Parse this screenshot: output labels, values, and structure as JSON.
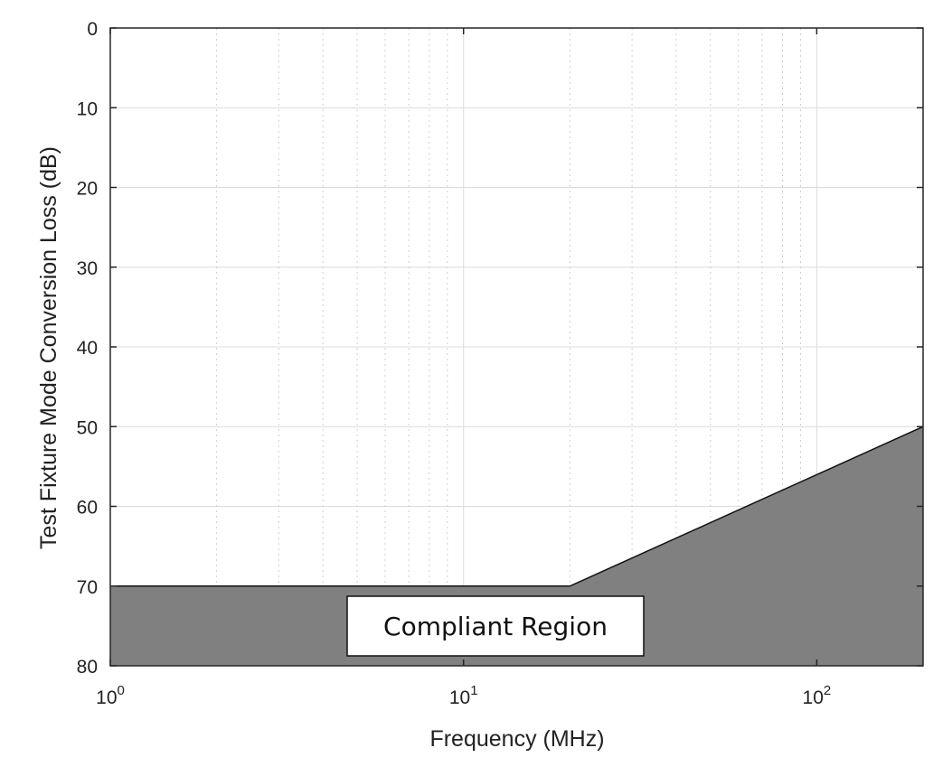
{
  "chart_data": {
    "type": "area",
    "title": "",
    "xlabel": "Frequency (MHz)",
    "ylabel": "Test Fixture Mode Conversion Loss (dB)",
    "x_scale": "log",
    "xlim": [
      1,
      200
    ],
    "ylim": [
      0,
      80
    ],
    "y_axis_reversed": true,
    "x_ticks": [
      {
        "value": 1,
        "base": "10",
        "exp": "0"
      },
      {
        "value": 10,
        "base": "10",
        "exp": "1"
      },
      {
        "value": 100,
        "base": "10",
        "exp": "2"
      }
    ],
    "y_ticks": [
      0,
      10,
      20,
      30,
      40,
      50,
      60,
      70,
      80
    ],
    "grid": true,
    "limit_line": {
      "x": [
        1,
        20,
        200
      ],
      "y": [
        70,
        70,
        50
      ]
    },
    "fill_color": "#808080",
    "annotation": "Compliant Region"
  }
}
